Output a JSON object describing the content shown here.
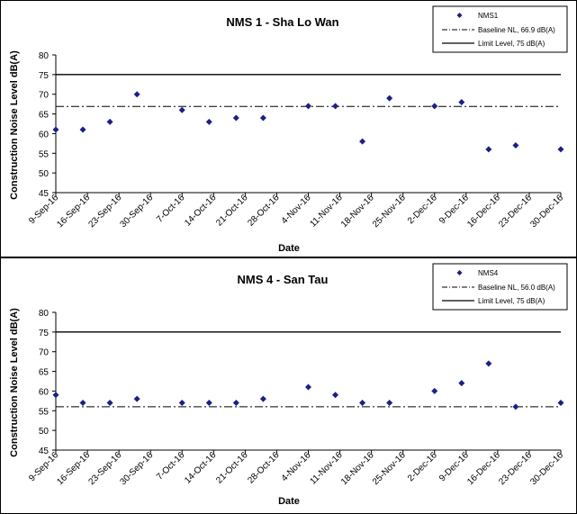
{
  "colors": {
    "marker": "#1b1f86",
    "line": "#000000",
    "frame": "#000000",
    "background": "#ffffff"
  },
  "chart_data": [
    {
      "type": "scatter",
      "title": "NMS 1 - Sha Lo Wan",
      "xlabel": "Date",
      "ylabel": "Construction Noise Level  dB(A)",
      "ylim": [
        45,
        80
      ],
      "yticks": [
        45,
        50,
        55,
        60,
        65,
        70,
        75,
        80
      ],
      "xlim": [
        "9-Sep-16",
        "30-Dec-16"
      ],
      "xticks": [
        "9-Sep-16",
        "16-Sep-16",
        "23-Sep-16",
        "30-Sep-16",
        "7-Oct-16",
        "14-Oct-16",
        "21-Oct-16",
        "28-Oct-16",
        "4-Nov-16",
        "11-Nov-16",
        "18-Nov-16",
        "25-Nov-16",
        "2-Dec-16",
        "9-Dec-16",
        "16-Dec-16",
        "23-Dec-16",
        "30-Dec-16"
      ],
      "series": [
        {
          "name": "NMS1",
          "marker": "diamond",
          "points": [
            {
              "x": "9-Sep-16",
              "y": 61
            },
            {
              "x": "15-Sep-16",
              "y": 61
            },
            {
              "x": "21-Sep-16",
              "y": 63
            },
            {
              "x": "27-Sep-16",
              "y": 70
            },
            {
              "x": "7-Oct-16",
              "y": 66
            },
            {
              "x": "13-Oct-16",
              "y": 63
            },
            {
              "x": "19-Oct-16",
              "y": 64
            },
            {
              "x": "25-Oct-16",
              "y": 64
            },
            {
              "x": "4-Nov-16",
              "y": 67
            },
            {
              "x": "10-Nov-16",
              "y": 67
            },
            {
              "x": "16-Nov-16",
              "y": 58
            },
            {
              "x": "22-Nov-16",
              "y": 69
            },
            {
              "x": "2-Dec-16",
              "y": 67
            },
            {
              "x": "8-Dec-16",
              "y": 68
            },
            {
              "x": "14-Dec-16",
              "y": 56
            },
            {
              "x": "20-Dec-16",
              "y": 57
            },
            {
              "x": "30-Dec-16",
              "y": 56
            }
          ]
        }
      ],
      "reference_lines": [
        {
          "name": "Baseline NL, 66.9 dB(A)",
          "y": 66.9,
          "style": "dash-dot"
        },
        {
          "name": "Limit Level, 75 dB(A)",
          "y": 75,
          "style": "solid"
        }
      ],
      "legend": "top-right",
      "grid": false
    },
    {
      "type": "scatter",
      "title": "NMS 4 - San Tau",
      "xlabel": "Date",
      "ylabel": "Construction Noise Level  dB(A)",
      "ylim": [
        45,
        80
      ],
      "yticks": [
        45,
        50,
        55,
        60,
        65,
        70,
        75,
        80
      ],
      "xlim": [
        "9-Sep-16",
        "30-Dec-16"
      ],
      "xticks": [
        "9-Sep-16",
        "16-Sep-16",
        "23-Sep-16",
        "30-Sep-16",
        "7-Oct-16",
        "14-Oct-16",
        "21-Oct-16",
        "28-Oct-16",
        "4-Nov-16",
        "11-Nov-16",
        "18-Nov-16",
        "25-Nov-16",
        "2-Dec-16",
        "9-Dec-16",
        "16-Dec-16",
        "23-Dec-16",
        "30-Dec-16"
      ],
      "series": [
        {
          "name": "NMS4",
          "marker": "diamond",
          "points": [
            {
              "x": "9-Sep-16",
              "y": 59
            },
            {
              "x": "15-Sep-16",
              "y": 57
            },
            {
              "x": "21-Sep-16",
              "y": 57
            },
            {
              "x": "27-Sep-16",
              "y": 58
            },
            {
              "x": "7-Oct-16",
              "y": 57
            },
            {
              "x": "13-Oct-16",
              "y": 57
            },
            {
              "x": "19-Oct-16",
              "y": 57
            },
            {
              "x": "25-Oct-16",
              "y": 58
            },
            {
              "x": "4-Nov-16",
              "y": 61
            },
            {
              "x": "10-Nov-16",
              "y": 59
            },
            {
              "x": "16-Nov-16",
              "y": 57
            },
            {
              "x": "22-Nov-16",
              "y": 57
            },
            {
              "x": "2-Dec-16",
              "y": 60
            },
            {
              "x": "8-Dec-16",
              "y": 62
            },
            {
              "x": "14-Dec-16",
              "y": 67
            },
            {
              "x": "20-Dec-16",
              "y": 56
            },
            {
              "x": "30-Dec-16",
              "y": 57
            }
          ]
        }
      ],
      "reference_lines": [
        {
          "name": "Baseline NL, 56.0 dB(A)",
          "y": 56.0,
          "style": "dash-dot"
        },
        {
          "name": "Limit Level, 75 dB(A)",
          "y": 75,
          "style": "solid"
        }
      ],
      "legend": "top-right",
      "grid": false
    }
  ]
}
